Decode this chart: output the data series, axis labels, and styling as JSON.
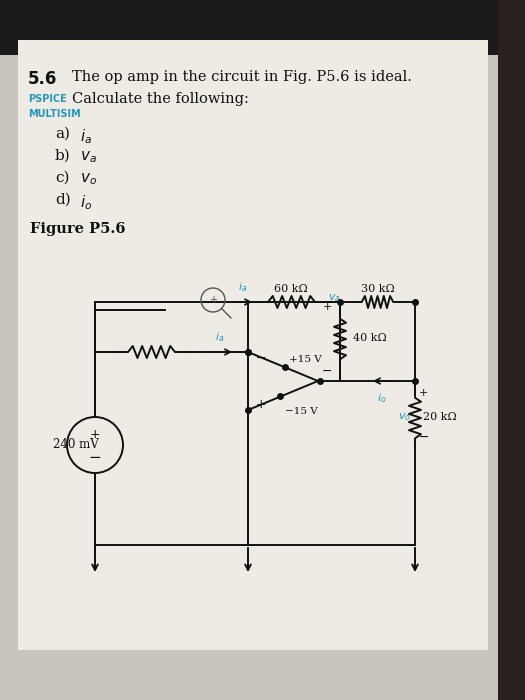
{
  "bg_top_color": "#2a2a2a",
  "bg_color": "#c8c5bf",
  "paper_color": "#eeeae4",
  "title_number": "5.6",
  "title_text": "The op amp in the circuit in Fig. P5.6 is ideal.",
  "title_text2": "Calculate the following:",
  "pspice_label": "PSPICE",
  "multisim_label": "MULTISIM",
  "items_letters": [
    "a)",
    "b)",
    "c)",
    "d)"
  ],
  "items_syms": [
    "$i_a$",
    "$v_a$",
    "$v_o$",
    "$i_o$"
  ],
  "figure_label": "Figure P5.6",
  "pspice_color": "#2299bb",
  "multisim_color": "#2299bb",
  "dark_color": "#111111",
  "lc": "#111111",
  "cyan_color": "#2299bb",
  "lw": 1.4
}
